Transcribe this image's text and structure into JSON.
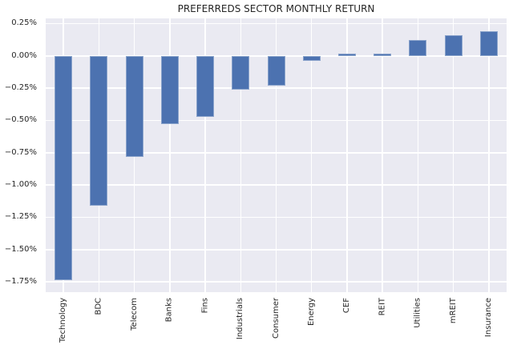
{
  "chart_data": {
    "type": "bar",
    "title": "PREFERREDS SECTOR MONTHLY RETURN",
    "unit": "%",
    "categories": [
      "Technology",
      "BDC",
      "Telecom",
      "Banks",
      "Fins",
      "Industrials",
      "Consumer",
      "Energy",
      "CEF",
      "REIT",
      "Utilities",
      "mREIT",
      "Insurance"
    ],
    "values": [
      -1.74,
      -1.16,
      -0.78,
      -0.53,
      -0.47,
      -0.26,
      -0.23,
      -0.04,
      0.02,
      0.02,
      0.12,
      0.16,
      0.19
    ],
    "xlabel": "",
    "ylabel": "",
    "yticks": [
      0.25,
      0.0,
      -0.25,
      -0.5,
      -0.75,
      -1.0,
      -1.25,
      -1.5,
      -1.75
    ],
    "ytick_labels": [
      "0.25%",
      "0.00%",
      "−0.25%",
      "−0.50%",
      "−0.75%",
      "−1.00%",
      "−1.25%",
      "−1.50%",
      "−1.75%"
    ],
    "ylim": [
      -1.83,
      0.29
    ],
    "grid": true,
    "legend": "none",
    "bar_color": "#4c72b0",
    "plot_bg": "#eaeaf2",
    "grid_color": "#ffffff",
    "text_color": "#262626"
  }
}
